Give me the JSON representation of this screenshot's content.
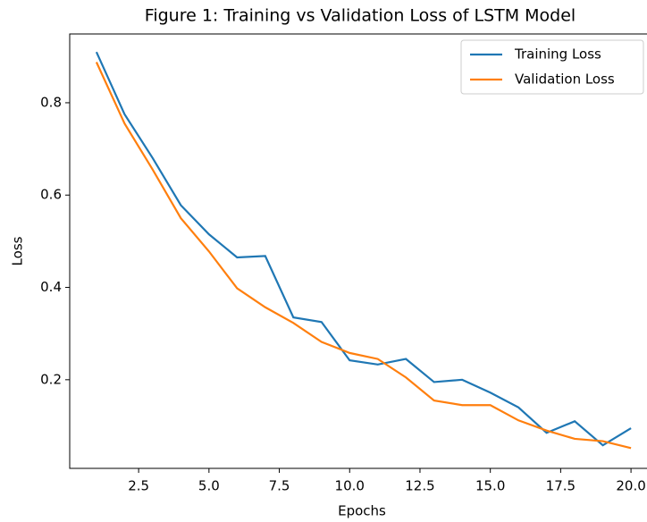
{
  "chart_data": {
    "type": "line",
    "title": "Figure 1: Training vs Validation Loss of LSTM Model",
    "xlabel": "Epochs",
    "ylabel": "Loss",
    "x": [
      1,
      2,
      3,
      4,
      5,
      6,
      7,
      8,
      9,
      10,
      11,
      12,
      13,
      14,
      15,
      16,
      17,
      18,
      19,
      20
    ],
    "series": [
      {
        "name": "Training Loss",
        "color": "#1f77b4",
        "values": [
          0.91,
          0.775,
          0.68,
          0.578,
          0.515,
          0.465,
          0.468,
          0.335,
          0.325,
          0.242,
          0.233,
          0.245,
          0.195,
          0.2,
          0.172,
          0.14,
          0.085,
          0.11,
          0.058,
          0.095
        ]
      },
      {
        "name": "Validation Loss",
        "color": "#ff7f0e",
        "values": [
          0.888,
          0.755,
          0.655,
          0.55,
          0.478,
          0.398,
          0.357,
          0.323,
          0.282,
          0.258,
          0.245,
          0.205,
          0.155,
          0.145,
          0.145,
          0.112,
          0.09,
          0.072,
          0.067,
          0.052
        ]
      }
    ],
    "xlim": [
      0.05,
      20.95
    ],
    "xticks": [
      {
        "value": 2.5,
        "label": "2.5"
      },
      {
        "value": 5,
        "label": "5.0"
      },
      {
        "value": 7.5,
        "label": "7.5"
      },
      {
        "value": 10,
        "label": "10.0"
      },
      {
        "value": 12.5,
        "label": "12.5"
      },
      {
        "value": 15,
        "label": "15.0"
      },
      {
        "value": 17.5,
        "label": "17.5"
      },
      {
        "value": 20,
        "label": "20.0"
      }
    ],
    "ylim": [
      0.008,
      0.949
    ],
    "yticks": [
      0.2,
      0.4,
      0.6,
      0.8
    ],
    "legend": "upper right"
  }
}
